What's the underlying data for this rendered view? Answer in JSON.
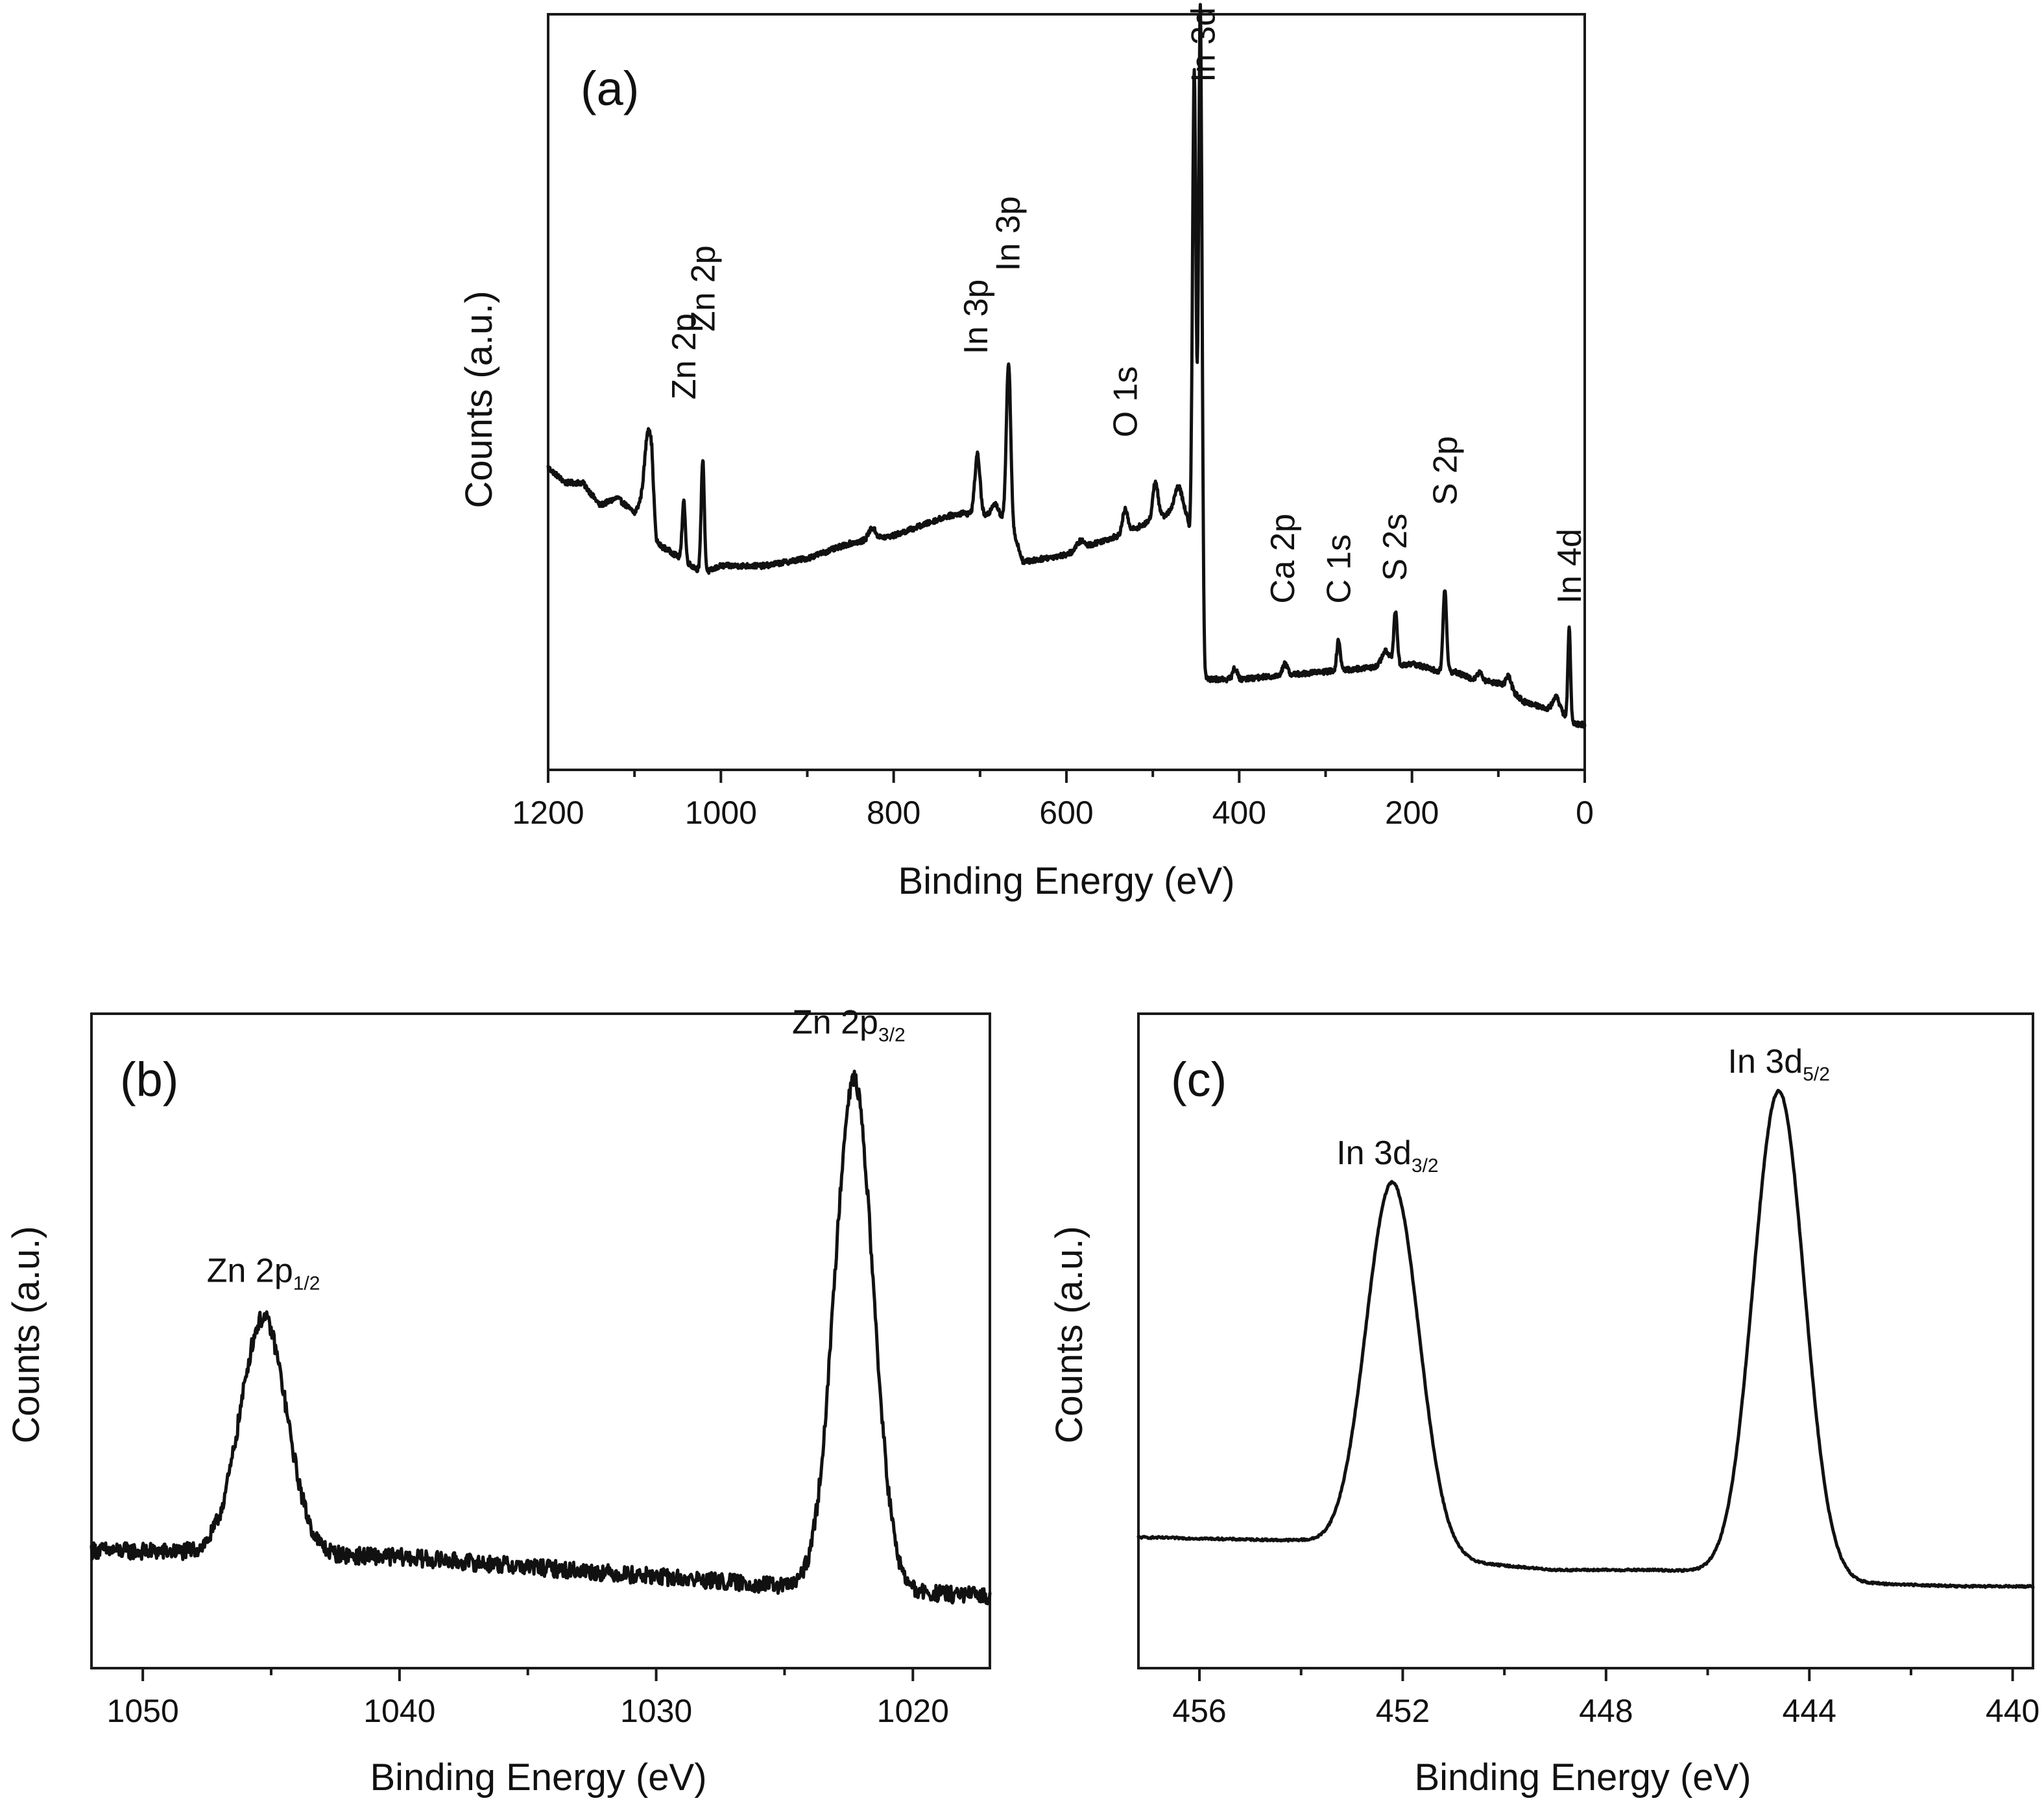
{
  "chart_data": [
    {
      "id": "a",
      "type": "line",
      "panel_label": "(a)",
      "xlabel": "Binding Energy (eV)",
      "ylabel": "Counts (a.u.)",
      "xlim": [
        1200,
        0
      ],
      "ylim": [
        0,
        100
      ],
      "x_ticks": [
        1200,
        1000,
        800,
        600,
        400,
        200,
        0
      ],
      "x_tick_labels": [
        "1200",
        "1000",
        "800",
        "600",
        "400",
        "200",
        "0"
      ],
      "baseline": [
        [
          1200,
          40
        ],
        [
          1180,
          38
        ],
        [
          1160,
          38
        ],
        [
          1140,
          35
        ],
        [
          1120,
          36
        ],
        [
          1100,
          34
        ],
        [
          1090,
          36
        ],
        [
          1080,
          38
        ],
        [
          1075,
          30
        ],
        [
          1060,
          29
        ],
        [
          1020,
          26
        ],
        [
          1000,
          27
        ],
        [
          950,
          27
        ],
        [
          900,
          28
        ],
        [
          850,
          30
        ],
        [
          800,
          31
        ],
        [
          740,
          33.5
        ],
        [
          720,
          34
        ],
        [
          690,
          33.5
        ],
        [
          666,
          33
        ],
        [
          650,
          27.5
        ],
        [
          600,
          28.5
        ],
        [
          580,
          29.5
        ],
        [
          540,
          31
        ],
        [
          500,
          33
        ],
        [
          480,
          34
        ],
        [
          470,
          34.5
        ],
        [
          460,
          33
        ],
        [
          455,
          29
        ],
        [
          446,
          18
        ],
        [
          440,
          12
        ],
        [
          430,
          12
        ],
        [
          400,
          12
        ],
        [
          350,
          12.5
        ],
        [
          300,
          13
        ],
        [
          250,
          13.5
        ],
        [
          200,
          14
        ],
        [
          180,
          13.5
        ],
        [
          170,
          13
        ],
        [
          150,
          13
        ],
        [
          130,
          12
        ],
        [
          100,
          11.5
        ],
        [
          90,
          11
        ],
        [
          70,
          9
        ],
        [
          40,
          8
        ],
        [
          20,
          7
        ],
        [
          10,
          6
        ],
        [
          0,
          6
        ]
      ],
      "peaks": [
        {
          "center": 1084,
          "height": 8,
          "width": 4
        },
        {
          "center": 1043,
          "height": 8,
          "width": 1.8
        },
        {
          "center": 1021,
          "height": 15,
          "width": 1.8
        },
        {
          "center": 825,
          "height": 1.5,
          "width": 4
        },
        {
          "center": 703,
          "height": 8,
          "width": 3
        },
        {
          "center": 683,
          "height": 2,
          "width": 4
        },
        {
          "center": 667,
          "height": 21,
          "width": 2.5
        },
        {
          "center": 584,
          "height": 1,
          "width": 4
        },
        {
          "center": 532,
          "height": 3,
          "width": 3
        },
        {
          "center": 497,
          "height": 5,
          "width": 3
        },
        {
          "center": 470,
          "height": 3,
          "width": 5
        },
        {
          "center": 452,
          "height": 67,
          "width": 2
        },
        {
          "center": 445,
          "height": 84,
          "width": 2
        },
        {
          "center": 405,
          "height": 1.5,
          "width": 2.5
        },
        {
          "center": 347,
          "height": 1.5,
          "width": 3
        },
        {
          "center": 285,
          "height": 4,
          "width": 2
        },
        {
          "center": 230,
          "height": 2,
          "width": 5
        },
        {
          "center": 219,
          "height": 7,
          "width": 2
        },
        {
          "center": 162,
          "height": 11,
          "width": 2
        },
        {
          "center": 122,
          "height": 1,
          "width": 3
        },
        {
          "center": 88,
          "height": 1.5,
          "width": 3
        },
        {
          "center": 33,
          "height": 2,
          "width": 4
        },
        {
          "center": 18,
          "height": 12,
          "width": 1.5
        }
      ],
      "annotations": [
        {
          "text": "Zn 2p",
          "x": 1043,
          "y": 49
        },
        {
          "text": "Zn 2p",
          "x": 1021,
          "y": 58
        },
        {
          "text": "In 3p",
          "x": 705,
          "y": 55
        },
        {
          "text": "In 3p",
          "x": 668,
          "y": 66
        },
        {
          "text": "O 1s",
          "x": 532,
          "y": 44
        },
        {
          "text": "In 3d",
          "x": 442,
          "y": 91
        },
        {
          "text": "Ca 2p",
          "x": 350,
          "y": 22
        },
        {
          "text": "C 1s",
          "x": 285,
          "y": 22
        },
        {
          "text": "S 2s",
          "x": 220,
          "y": 25
        },
        {
          "text": "S 2p",
          "x": 162,
          "y": 35
        },
        {
          "text": "In 4d",
          "x": 18,
          "y": 22
        }
      ]
    },
    {
      "id": "b",
      "type": "line",
      "panel_label": "(b)",
      "xlabel": "Binding Energy (eV)",
      "ylabel": "Counts (a.u.)",
      "xlim": [
        1052,
        1017
      ],
      "ylim": [
        0,
        100
      ],
      "x_ticks": [
        1050,
        1040,
        1030,
        1020
      ],
      "x_tick_labels": [
        "1050",
        "1040",
        "1030",
        "1020"
      ],
      "baseline": [
        [
          1052,
          18
        ],
        [
          1045,
          17.5
        ],
        [
          1040,
          17
        ],
        [
          1035,
          15.5
        ],
        [
          1030,
          14
        ],
        [
          1025,
          12.5
        ],
        [
          1020,
          11.5
        ],
        [
          1017,
          11
        ]
      ],
      "noise": 1.3,
      "peaks": [
        {
          "center": 1045.3,
          "height": 36,
          "width": 0.9
        },
        {
          "center": 1022.3,
          "height": 78,
          "width": 0.75
        }
      ],
      "annotations": [
        {
          "main": "Zn 2p",
          "sub": "1/2",
          "x": 1045.3,
          "y": 59
        },
        {
          "main": "Zn 2p",
          "sub": "3/2",
          "x": 1022.5,
          "y": 97
        }
      ]
    },
    {
      "id": "c",
      "type": "line",
      "panel_label": "(c)",
      "xlabel": "Binding Energy (eV)",
      "ylabel": "Counts (a.u.)",
      "xlim": [
        457.2,
        439.6
      ],
      "ylim": [
        0,
        100
      ],
      "x_ticks": [
        456,
        452,
        448,
        444,
        440
      ],
      "x_tick_labels": [
        "456",
        "452",
        "448",
        "444",
        "440"
      ],
      "baseline": [
        [
          457.2,
          20
        ],
        [
          454,
          19.5
        ],
        [
          452,
          17
        ],
        [
          449,
          15
        ],
        [
          447,
          15
        ],
        [
          445,
          14.5
        ],
        [
          443,
          13
        ],
        [
          441,
          12.5
        ],
        [
          439.6,
          12.5
        ]
      ],
      "noise": 0.15,
      "peaks": [
        {
          "center": 452.2,
          "height": 57,
          "width": 0.52
        },
        {
          "center": 444.6,
          "height": 74,
          "width": 0.5
        }
      ],
      "annotations": [
        {
          "main": "In 3d",
          "sub": "3/2",
          "x": 452.3,
          "y": 77
        },
        {
          "main": "In 3d",
          "sub": "5/2",
          "x": 444.6,
          "y": 91
        }
      ]
    }
  ]
}
